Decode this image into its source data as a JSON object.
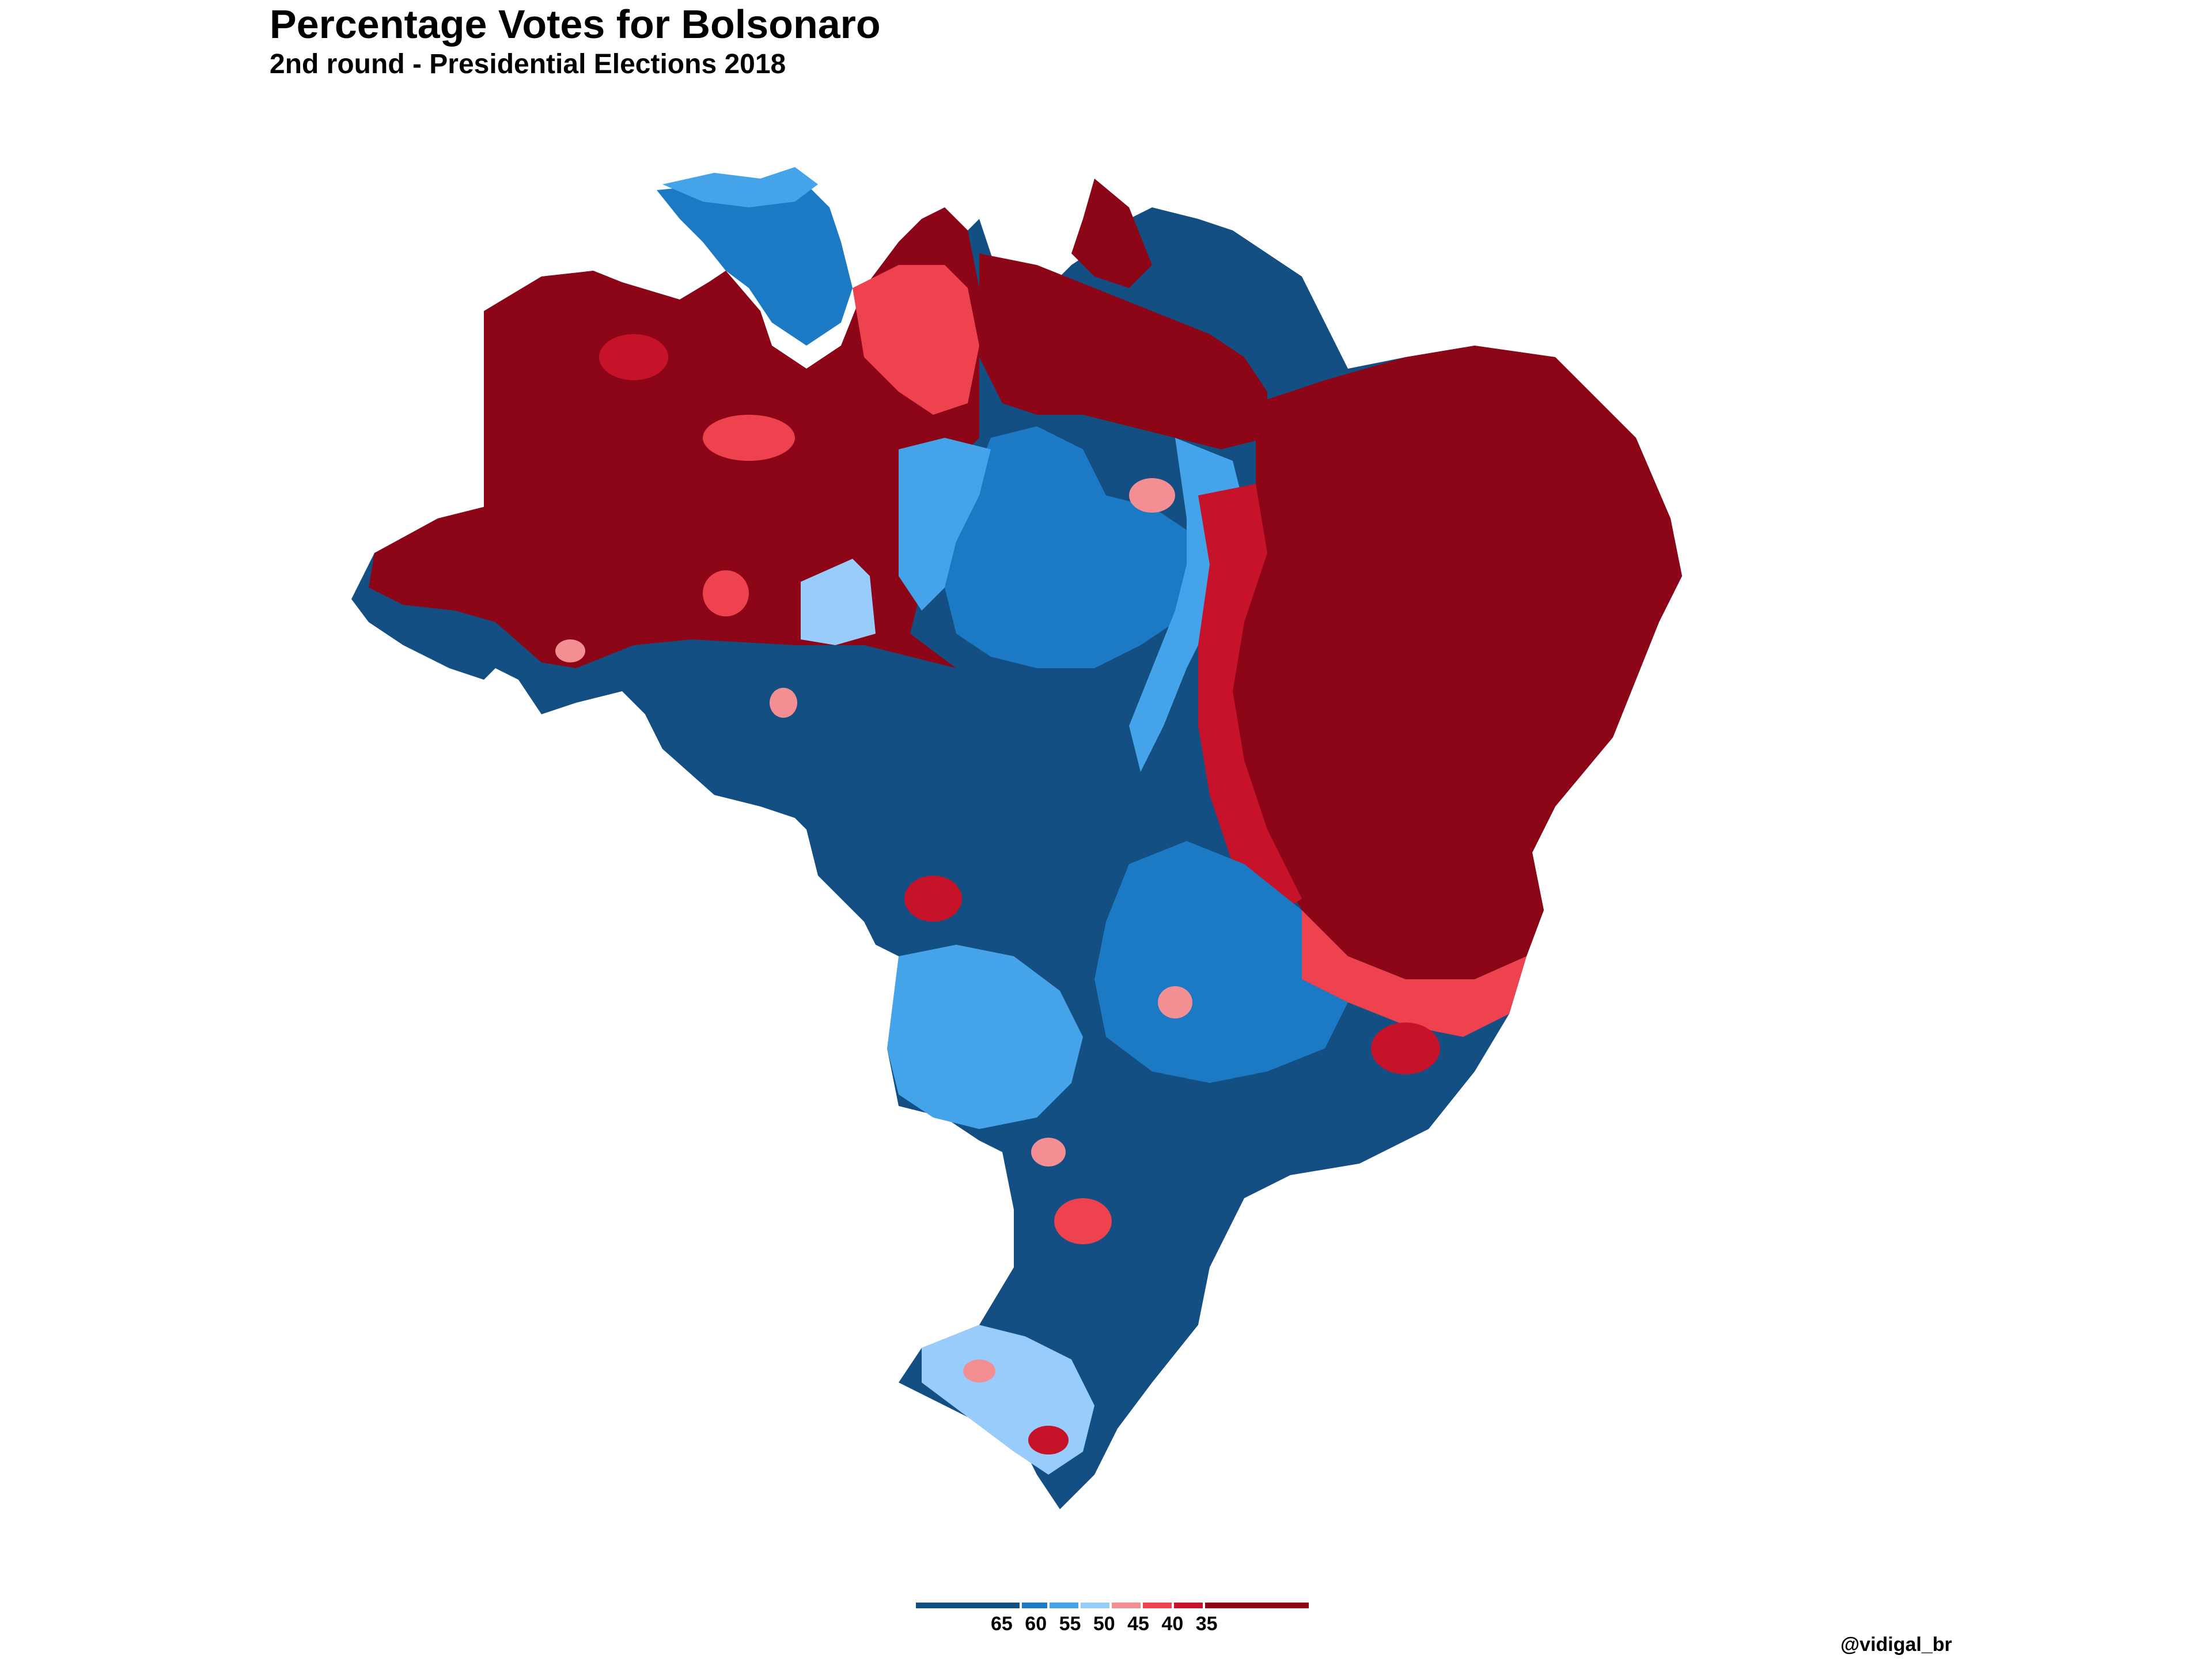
{
  "title": "Percentage Votes for Bolsonaro",
  "subtitle": "2nd round - Presidential Elections 2018",
  "credit": "@vidigal_br",
  "legend": {
    "labels": [
      "65",
      "60",
      "55",
      "50",
      "45",
      "40",
      "35"
    ],
    "bins": [
      {
        "range": ">65",
        "color": "#134f82"
      },
      {
        "range": "60-65",
        "color": "#1c7ac4"
      },
      {
        "range": "55-60",
        "color": "#45a3ea"
      },
      {
        "range": "50-55",
        "color": "#98cdfb"
      },
      {
        "range": "45-50",
        "color": "#f38f93"
      },
      {
        "range": "40-45",
        "color": "#ee434e"
      },
      {
        "range": "35-40",
        "color": "#c6132a"
      },
      {
        "range": "<35",
        "color": "#8c0617"
      }
    ]
  },
  "regions": [
    {
      "name": "North-West (Amazonas/Acre)",
      "level": "<35",
      "color": "#8c0617"
    },
    {
      "name": "Rondônia / Mato Grosso",
      "level": ">65",
      "color": "#134f82"
    },
    {
      "name": "Roraima",
      "level": "60-65",
      "color": "#1c7ac4"
    },
    {
      "name": "Pará",
      "level": "mixed",
      "color": "#8c0617"
    },
    {
      "name": "Tocantins",
      "level": "60-65",
      "color": "#1c7ac4"
    },
    {
      "name": "Northeast",
      "level": "<35",
      "color": "#8c0617"
    },
    {
      "name": "Center-West / Goiás",
      "level": ">65",
      "color": "#134f82"
    },
    {
      "name": "Southeast",
      "level": ">65",
      "color": "#134f82"
    },
    {
      "name": "South",
      "level": ">65",
      "color": "#134f82"
    }
  ]
}
